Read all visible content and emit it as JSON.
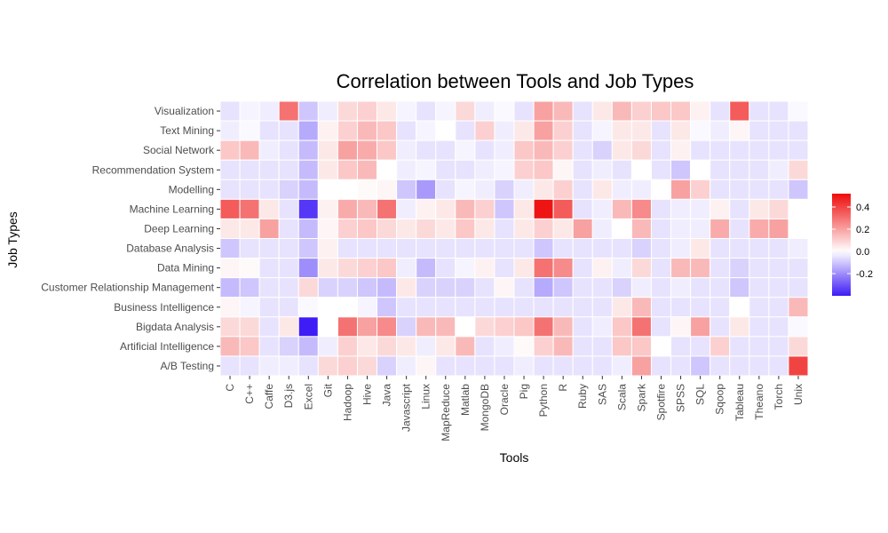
{
  "chart_data": {
    "type": "heatmap",
    "title": "Correlation between Tools and Job Types",
    "xlabel": "Tools",
    "ylabel": "Job Types",
    "x": [
      "C",
      "C++",
      "Caffe",
      "D3.js",
      "Excel",
      "Git",
      "Hadoop",
      "Hive",
      "Java",
      "Javascript",
      "Linux",
      "MapReduce",
      "Matlab",
      "MongoDB",
      "Oracle",
      "Pig",
      "Python",
      "R",
      "Ruby",
      "SAS",
      "Scala",
      "Spark",
      "Spotfire",
      "SPSS",
      "SQL",
      "Sqoop",
      "Tableau",
      "Theano",
      "Torch",
      "Unix"
    ],
    "y": [
      "Visualization",
      "Text Mining",
      "Social Network",
      "Recommendation System",
      "Modelling",
      "Machine Learning",
      "Deep Learning",
      "Database Analysis",
      "Data Mining",
      "Customer Relationship Management",
      "Business Intelligence",
      "Bigdata Analysis",
      "Artificial Intelligence",
      "A/B Testing"
    ],
    "values": [
      [
        -0.05,
        -0.02,
        -0.03,
        0.3,
        -0.1,
        -0.03,
        0.08,
        0.1,
        0.05,
        -0.02,
        -0.05,
        -0.02,
        0.08,
        -0.03,
        -0.01,
        -0.05,
        0.2,
        0.15,
        -0.05,
        0.05,
        0.15,
        0.1,
        0.12,
        0.12,
        0.03,
        -0.05,
        0.35,
        -0.05,
        -0.05,
        -0.01
      ],
      [
        -0.03,
        -0.01,
        -0.05,
        -0.05,
        -0.15,
        0.03,
        0.1,
        0.15,
        0.12,
        -0.05,
        -0.02,
        0.0,
        -0.05,
        0.1,
        -0.03,
        0.05,
        0.2,
        0.1,
        -0.05,
        -0.02,
        0.05,
        0.05,
        -0.05,
        0.05,
        -0.01,
        -0.03,
        0.02,
        -0.05,
        -0.05,
        -0.05
      ],
      [
        0.12,
        0.15,
        -0.03,
        -0.05,
        -0.12,
        0.05,
        0.2,
        0.18,
        0.12,
        -0.03,
        -0.05,
        -0.05,
        -0.02,
        -0.05,
        -0.03,
        0.12,
        0.15,
        0.1,
        -0.05,
        -0.08,
        0.05,
        0.08,
        -0.05,
        0.03,
        -0.05,
        -0.05,
        -0.05,
        -0.05,
        -0.05,
        -0.05
      ],
      [
        -0.05,
        -0.05,
        -0.05,
        -0.05,
        -0.12,
        0.05,
        0.12,
        0.15,
        0.0,
        -0.03,
        -0.02,
        -0.05,
        -0.05,
        -0.03,
        -0.02,
        0.1,
        0.12,
        0.02,
        -0.05,
        -0.03,
        -0.05,
        0.0,
        -0.05,
        -0.1,
        0.0,
        -0.05,
        -0.05,
        -0.05,
        -0.03,
        0.08
      ],
      [
        -0.05,
        -0.05,
        -0.05,
        -0.08,
        -0.12,
        0.0,
        0.0,
        0.01,
        0.02,
        -0.1,
        -0.18,
        -0.05,
        -0.02,
        -0.03,
        -0.08,
        -0.03,
        0.05,
        0.1,
        -0.05,
        0.05,
        -0.03,
        -0.03,
        0.0,
        0.2,
        0.1,
        -0.05,
        -0.05,
        -0.05,
        -0.05,
        -0.1
      ],
      [
        0.35,
        0.3,
        0.05,
        -0.05,
        -0.35,
        0.03,
        0.18,
        0.15,
        0.3,
        -0.03,
        0.03,
        0.05,
        0.15,
        0.1,
        -0.1,
        0.05,
        0.5,
        0.35,
        -0.05,
        -0.03,
        0.15,
        0.25,
        -0.05,
        -0.03,
        -0.03,
        0.03,
        -0.05,
        0.05,
        0.08,
        0.0
      ],
      [
        0.05,
        0.05,
        0.2,
        -0.05,
        -0.12,
        0.02,
        0.1,
        0.12,
        0.08,
        0.05,
        0.08,
        0.05,
        0.12,
        0.05,
        -0.05,
        0.05,
        0.1,
        0.05,
        0.2,
        -0.03,
        0.0,
        0.15,
        -0.05,
        -0.03,
        -0.03,
        0.18,
        -0.05,
        0.18,
        0.2,
        0.0
      ],
      [
        -0.1,
        -0.05,
        -0.05,
        -0.05,
        -0.1,
        0.03,
        -0.05,
        -0.05,
        -0.05,
        -0.05,
        -0.05,
        -0.05,
        -0.05,
        -0.05,
        -0.05,
        -0.05,
        -0.1,
        -0.05,
        -0.05,
        -0.05,
        -0.05,
        -0.08,
        -0.05,
        -0.03,
        0.05,
        -0.05,
        -0.05,
        -0.05,
        -0.05,
        -0.03
      ],
      [
        0.02,
        0.01,
        -0.05,
        -0.05,
        -0.2,
        0.05,
        0.08,
        0.1,
        0.12,
        -0.03,
        -0.12,
        -0.05,
        -0.02,
        0.03,
        -0.05,
        0.05,
        0.3,
        0.25,
        -0.05,
        0.03,
        -0.03,
        0.08,
        -0.05,
        0.15,
        0.15,
        -0.05,
        -0.08,
        -0.05,
        -0.05,
        -0.05
      ],
      [
        -0.12,
        -0.1,
        -0.05,
        -0.05,
        0.08,
        -0.08,
        -0.08,
        -0.1,
        -0.12,
        0.05,
        -0.08,
        -0.08,
        -0.08,
        -0.05,
        0.02,
        -0.05,
        -0.15,
        -0.1,
        -0.05,
        -0.05,
        -0.08,
        -0.03,
        -0.05,
        -0.03,
        -0.05,
        -0.05,
        -0.1,
        -0.05,
        -0.05,
        -0.05
      ],
      [
        0.02,
        -0.02,
        -0.05,
        -0.05,
        -0.01,
        0.0,
        0.0,
        -0.02,
        -0.1,
        -0.05,
        -0.05,
        -0.05,
        -0.05,
        -0.05,
        -0.05,
        -0.05,
        -0.05,
        -0.05,
        -0.05,
        -0.05,
        0.05,
        0.15,
        -0.05,
        -0.05,
        -0.05,
        -0.05,
        0.0,
        -0.05,
        -0.05,
        0.15
      ],
      [
        0.08,
        0.08,
        -0.05,
        0.05,
        -0.4,
        0.0,
        0.3,
        0.2,
        0.25,
        -0.08,
        0.15,
        0.15,
        0.0,
        0.08,
        0.1,
        0.12,
        0.3,
        0.15,
        -0.05,
        -0.03,
        0.12,
        0.3,
        -0.05,
        0.02,
        0.2,
        -0.05,
        0.05,
        -0.05,
        -0.05,
        -0.01
      ],
      [
        0.15,
        0.12,
        -0.05,
        -0.08,
        -0.12,
        -0.03,
        0.1,
        0.05,
        0.08,
        0.05,
        -0.03,
        0.05,
        0.15,
        -0.05,
        -0.03,
        0.01,
        0.1,
        0.15,
        -0.05,
        -0.05,
        0.12,
        0.12,
        0.0,
        -0.05,
        -0.05,
        0.1,
        -0.05,
        -0.05,
        -0.05,
        0.08
      ],
      [
        -0.05,
        -0.05,
        -0.03,
        -0.03,
        -0.05,
        0.08,
        0.1,
        0.08,
        -0.08,
        -0.03,
        0.02,
        -0.05,
        -0.05,
        -0.05,
        -0.05,
        -0.03,
        -0.05,
        -0.05,
        -0.05,
        -0.05,
        -0.03,
        0.2,
        -0.05,
        -0.05,
        -0.1,
        -0.05,
        -0.05,
        -0.05,
        -0.05,
        0.4
      ]
    ],
    "color_scale": {
      "low": "#3d1cf6",
      "mid": "#ffffff",
      "high": "#ee0b0b",
      "domain": [
        -0.4,
        0,
        0.52
      ]
    },
    "legend": {
      "ticks": [
        "0.4",
        "0.2",
        "0.0",
        "-0.2"
      ],
      "tick_values": [
        0.4,
        0.2,
        0.0,
        -0.2
      ],
      "placement": "right"
    },
    "grid": false
  }
}
